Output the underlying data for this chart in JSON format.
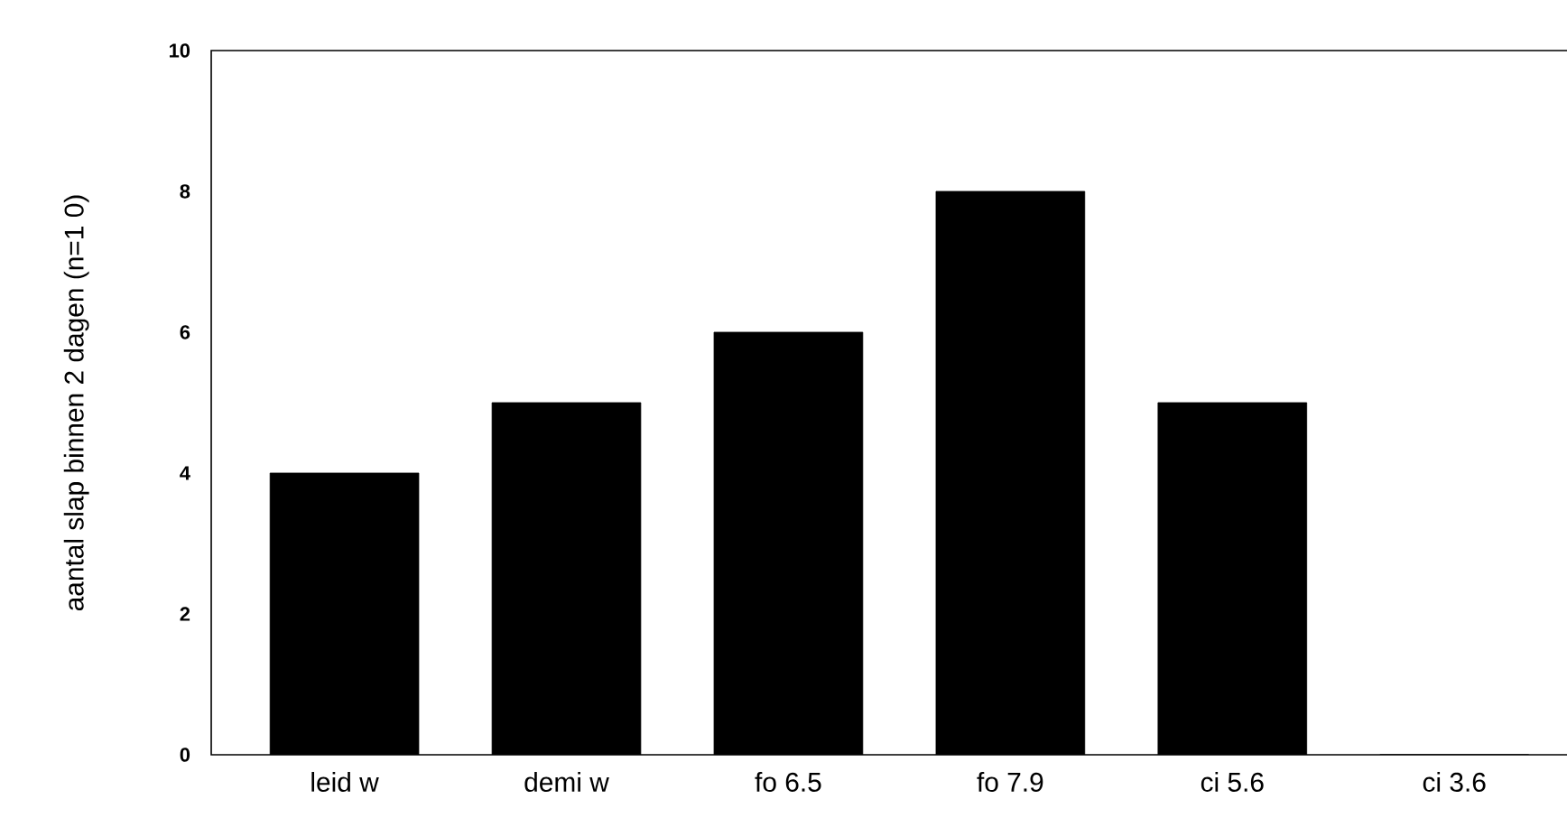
{
  "chart_data": {
    "type": "bar",
    "ylabel": "aantal slap binnen 2 dagen (n=1 0)",
    "categories": [
      "leid w",
      "demi w",
      "fo 6.5",
      "fo 7.9",
      "ci 5.6",
      "ci 3.6"
    ],
    "values": [
      4,
      5,
      6,
      8,
      5,
      0
    ],
    "color": "#000000",
    "ylim": [
      0,
      10
    ],
    "yticks": [
      0,
      2,
      4,
      6,
      8,
      10
    ],
    "grid": false
  }
}
